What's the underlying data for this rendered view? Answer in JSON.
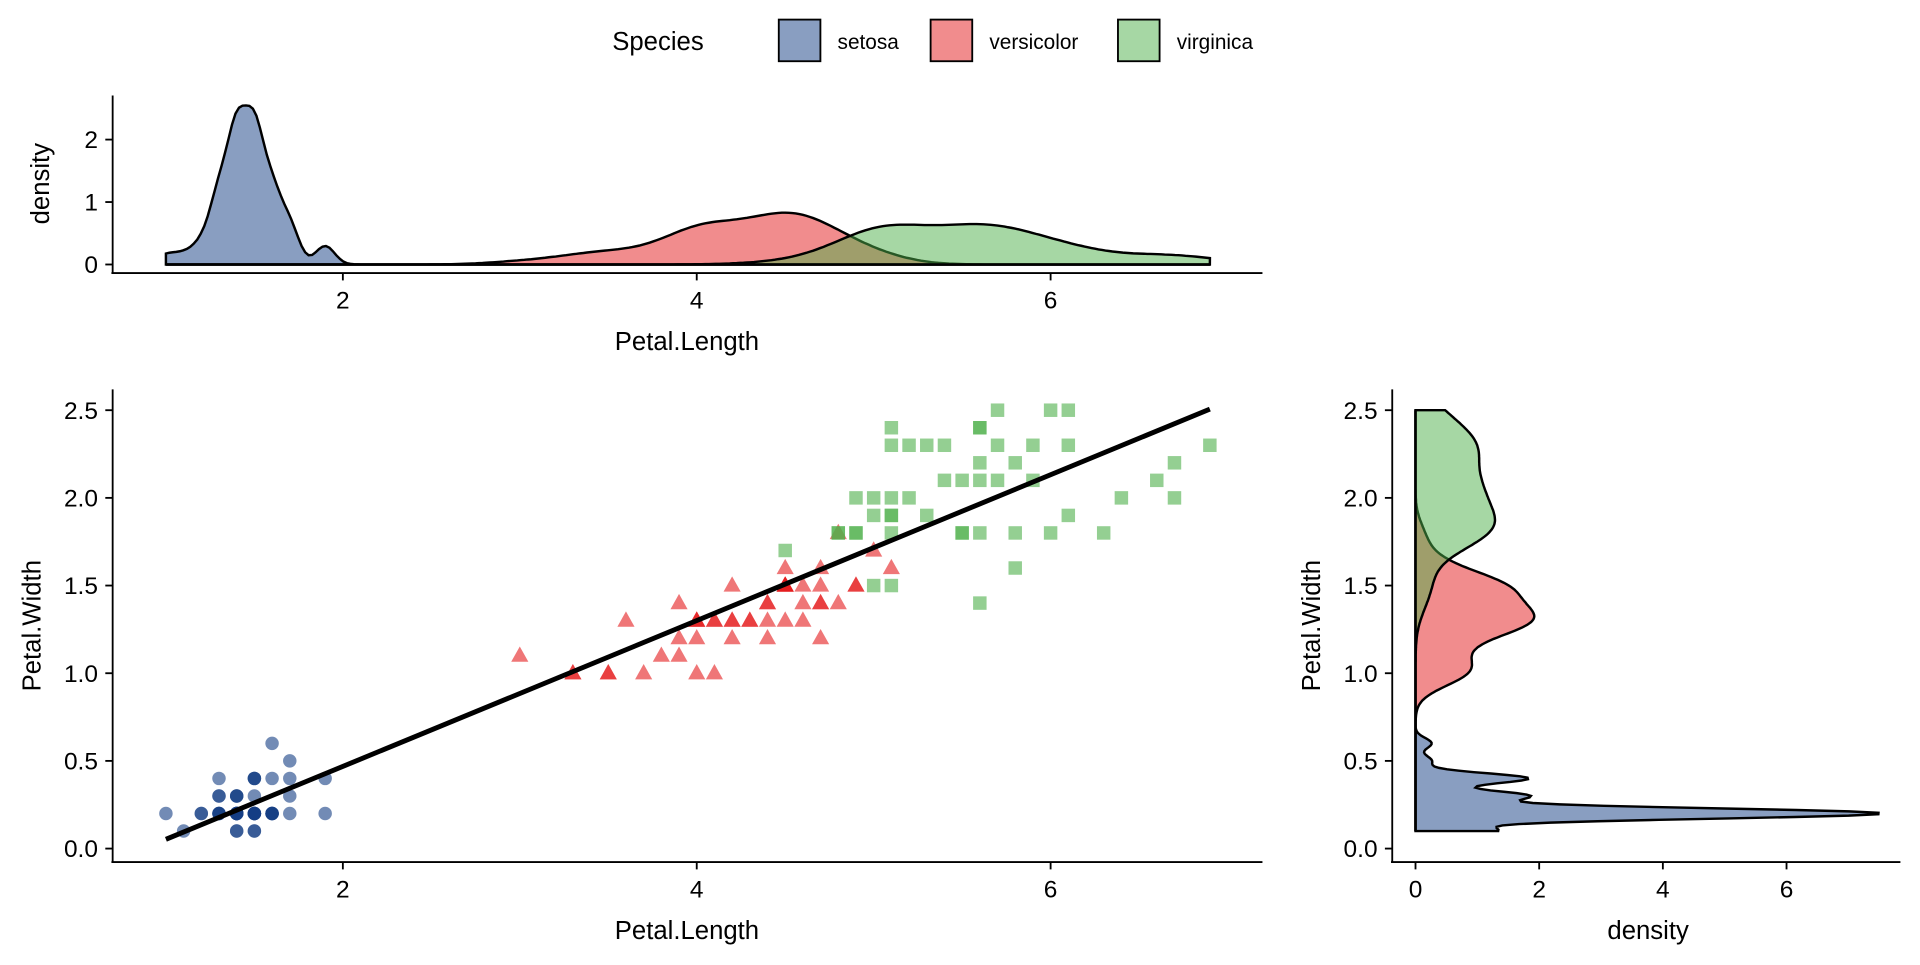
{
  "legend": {
    "title": "Species",
    "entries": [
      "setosa",
      "versicolor",
      "virginica"
    ]
  },
  "colors": {
    "setosa": "#143E84",
    "versicolor": "#E41A1C",
    "virginica": "#4DAF4A"
  },
  "chart_data": [
    {
      "type": "area",
      "name": "top-density",
      "xlabel": "Petal.Length",
      "ylabel": "density",
      "xticks": [
        "2",
        "4",
        "6"
      ],
      "yticks": [
        "0",
        "1",
        "2"
      ],
      "xlim": [
        0.7,
        7.2
      ],
      "ylim": [
        0,
        2.7
      ]
    },
    {
      "type": "scatter",
      "name": "main-scatter",
      "xlabel": "Petal.Length",
      "ylabel": "Petal.Width",
      "xticks": [
        "2",
        "4",
        "6"
      ],
      "yticks": [
        "0.0",
        "0.5",
        "1.0",
        "1.5",
        "2.0",
        "2.5"
      ],
      "xlim": [
        0.7,
        7.2
      ],
      "ylim": [
        -0.03,
        2.6
      ],
      "regression": {
        "intercept": -0.363,
        "slope": 0.4158
      },
      "series": [
        {
          "name": "setosa",
          "shape": "circle",
          "x": [
            1.4,
            1.4,
            1.3,
            1.5,
            1.4,
            1.7,
            1.4,
            1.5,
            1.4,
            1.5,
            1.5,
            1.6,
            1.4,
            1.1,
            1.2,
            1.5,
            1.3,
            1.4,
            1.7,
            1.5,
            1.7,
            1.5,
            1.0,
            1.7,
            1.9,
            1.6,
            1.6,
            1.5,
            1.4,
            1.6,
            1.6,
            1.5,
            1.5,
            1.4,
            1.5,
            1.2,
            1.3,
            1.4,
            1.3,
            1.5,
            1.3,
            1.3,
            1.3,
            1.6,
            1.9,
            1.4,
            1.6,
            1.4,
            1.5,
            1.4
          ],
          "y": [
            0.2,
            0.2,
            0.2,
            0.2,
            0.2,
            0.4,
            0.3,
            0.2,
            0.2,
            0.1,
            0.2,
            0.2,
            0.1,
            0.1,
            0.2,
            0.4,
            0.4,
            0.3,
            0.3,
            0.3,
            0.2,
            0.4,
            0.2,
            0.5,
            0.2,
            0.2,
            0.4,
            0.2,
            0.2,
            0.2,
            0.2,
            0.4,
            0.1,
            0.2,
            0.2,
            0.2,
            0.2,
            0.1,
            0.2,
            0.2,
            0.3,
            0.3,
            0.2,
            0.6,
            0.4,
            0.3,
            0.2,
            0.2,
            0.2,
            0.2
          ]
        },
        {
          "name": "versicolor",
          "shape": "triangle",
          "x": [
            4.7,
            4.5,
            4.9,
            4.0,
            4.6,
            4.5,
            4.7,
            3.3,
            4.6,
            3.9,
            3.5,
            4.2,
            4.0,
            4.7,
            3.6,
            4.4,
            4.5,
            4.1,
            4.5,
            3.9,
            4.8,
            4.0,
            4.9,
            4.7,
            4.3,
            4.4,
            4.8,
            5.0,
            4.5,
            3.5,
            3.8,
            3.7,
            3.9,
            5.1,
            4.5,
            4.5,
            4.7,
            4.4,
            4.1,
            4.0,
            4.4,
            4.6,
            4.0,
            3.3,
            4.2,
            4.2,
            4.2,
            4.3,
            3.0,
            4.1
          ],
          "y": [
            1.4,
            1.5,
            1.5,
            1.3,
            1.5,
            1.3,
            1.6,
            1.0,
            1.3,
            1.4,
            1.0,
            1.5,
            1.0,
            1.4,
            1.3,
            1.4,
            1.5,
            1.0,
            1.5,
            1.1,
            1.8,
            1.3,
            1.5,
            1.2,
            1.3,
            1.4,
            1.4,
            1.7,
            1.5,
            1.0,
            1.1,
            1.0,
            1.2,
            1.6,
            1.5,
            1.6,
            1.5,
            1.3,
            1.3,
            1.3,
            1.2,
            1.4,
            1.2,
            1.0,
            1.3,
            1.2,
            1.3,
            1.3,
            1.1,
            1.3
          ]
        },
        {
          "name": "virginica",
          "shape": "square",
          "x": [
            6.0,
            5.1,
            5.9,
            5.6,
            5.8,
            6.6,
            4.5,
            6.3,
            5.8,
            6.1,
            5.1,
            5.3,
            5.5,
            5.0,
            5.1,
            5.3,
            5.5,
            6.7,
            6.9,
            5.0,
            5.7,
            4.9,
            6.7,
            4.9,
            5.7,
            6.0,
            4.8,
            4.9,
            5.6,
            5.8,
            6.1,
            6.4,
            5.6,
            5.1,
            5.6,
            6.1,
            5.6,
            5.5,
            4.8,
            5.4,
            5.6,
            5.1,
            5.1,
            5.9,
            5.7,
            5.2,
            5.0,
            5.2,
            5.4,
            5.1
          ],
          "y": [
            2.5,
            1.9,
            2.1,
            1.8,
            2.2,
            2.1,
            1.7,
            1.8,
            1.8,
            2.5,
            2.0,
            1.9,
            2.1,
            2.0,
            2.4,
            2.3,
            1.8,
            2.2,
            2.3,
            1.5,
            2.3,
            2.0,
            2.0,
            1.8,
            2.1,
            1.8,
            1.8,
            1.8,
            2.1,
            1.6,
            1.9,
            2.0,
            2.2,
            1.5,
            1.4,
            2.3,
            2.4,
            1.8,
            1.8,
            2.1,
            2.4,
            2.3,
            1.9,
            2.3,
            2.5,
            2.3,
            1.9,
            2.0,
            2.3,
            1.8
          ]
        }
      ]
    },
    {
      "type": "area",
      "name": "right-density",
      "xlabel": "density",
      "ylabel": "Petal.Width",
      "xticks": [
        "0",
        "2",
        "4",
        "6"
      ],
      "yticks": [
        "0.0",
        "0.5",
        "1.0",
        "1.5",
        "2.0",
        "2.5"
      ],
      "xlim": [
        -0.4,
        7.8
      ],
      "ylim": [
        -0.03,
        2.6
      ]
    }
  ]
}
